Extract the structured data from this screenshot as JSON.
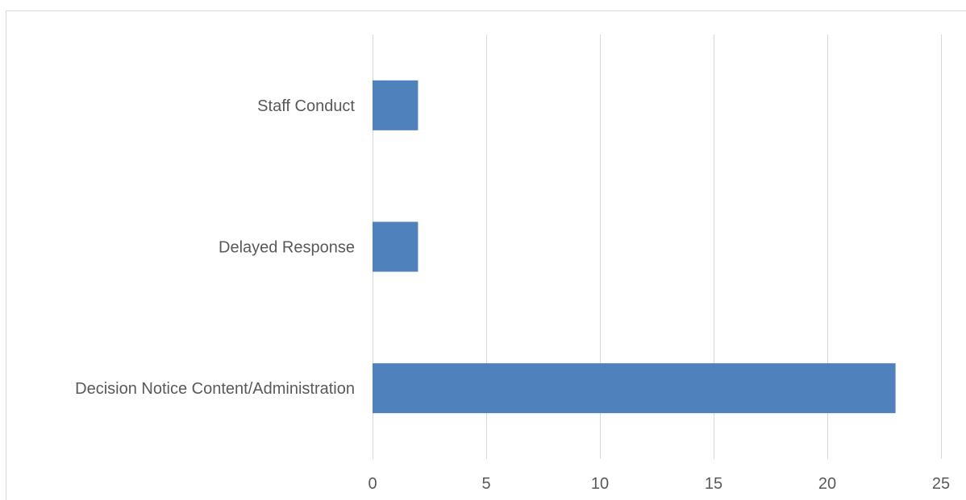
{
  "chart_data": {
    "type": "bar",
    "orientation": "horizontal",
    "categories": [
      "Staff Conduct",
      "Delayed Response",
      "Decision Notice Content/Administration"
    ],
    "values": [
      2,
      2,
      23
    ],
    "title": "",
    "xlabel": "",
    "ylabel": "",
    "xlim": [
      0,
      25
    ],
    "x_ticks": [
      0,
      5,
      10,
      15,
      20,
      25
    ],
    "grid": "vertical",
    "legend": "none",
    "bar_color": "#4f81bd",
    "grid_color": "#d9d9d9",
    "text_color": "#595959"
  }
}
